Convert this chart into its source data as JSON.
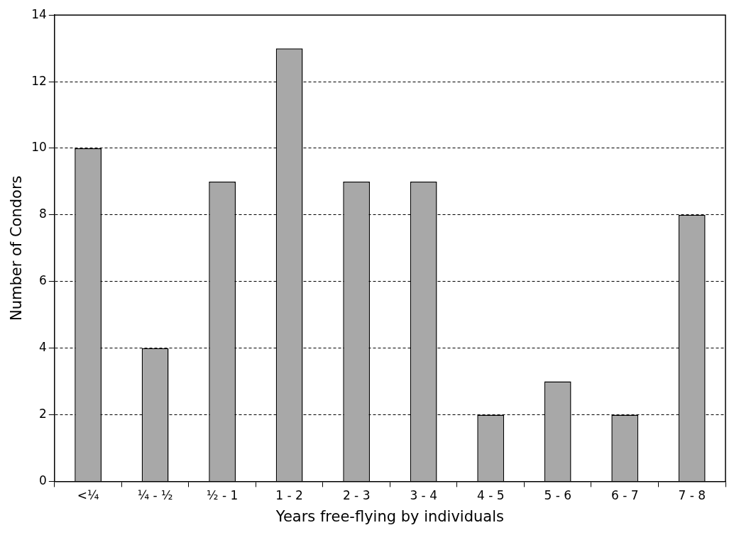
{
  "chart_data": {
    "type": "bar",
    "xlabel": "Years free-flying by individuals",
    "ylabel": "Number of Condors",
    "categories": [
      "<¼",
      "¼ - ½",
      "½ - 1",
      "1 - 2",
      "2 - 3",
      "3 - 4",
      "4 - 5",
      "5 - 6",
      "6 - 7",
      "7 - 8"
    ],
    "values": [
      10,
      4,
      9,
      13,
      9,
      9,
      2,
      3,
      2,
      8
    ],
    "color": "#a8a8a8",
    "ylim": [
      0,
      14
    ],
    "yticks": [
      0,
      2,
      4,
      6,
      8,
      10,
      12,
      14
    ],
    "grid": "y",
    "legend": false
  }
}
